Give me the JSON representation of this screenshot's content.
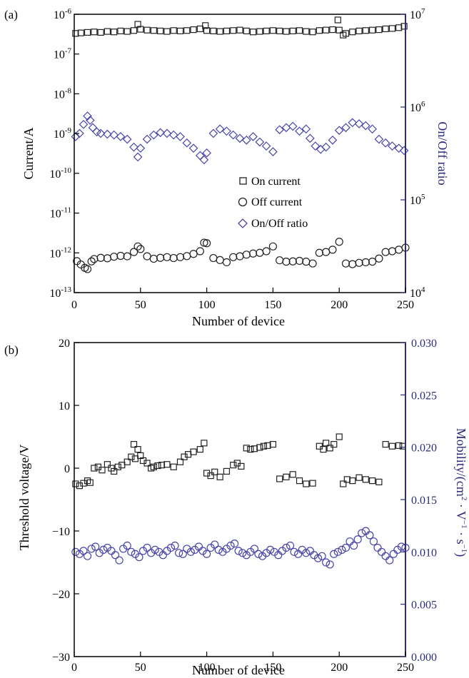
{
  "chart_data": [
    {
      "panel": "(a)",
      "type": "scatter",
      "xlabel": "Number of device",
      "ylabel": "Current/A",
      "y2label": "On/Off ratio",
      "xlim": [
        0,
        250
      ],
      "ylim_log10": [
        -13,
        -6
      ],
      "y2lim_log10": [
        4,
        7
      ],
      "y_scale": "log",
      "y2_scale": "log",
      "xticks": [
        "0",
        "50",
        "100",
        "150",
        "200",
        "250"
      ],
      "yticks": [
        {
          "base": "10",
          "exp": "-13"
        },
        {
          "base": "10",
          "exp": "-12"
        },
        {
          "base": "10",
          "exp": "-11"
        },
        {
          "base": "10",
          "exp": "-10"
        },
        {
          "base": "10",
          "exp": "-9"
        },
        {
          "base": "10",
          "exp": "-8"
        },
        {
          "base": "10",
          "exp": "-7"
        },
        {
          "base": "10",
          "exp": "-6"
        }
      ],
      "y2ticks": [
        {
          "base": "10",
          "exp": "4"
        },
        {
          "base": "10",
          "exp": "5"
        },
        {
          "base": "10",
          "exp": "6"
        },
        {
          "base": "10",
          "exp": "7"
        }
      ],
      "legend_position": "center-right",
      "colors": {
        "on_current": "#222222",
        "off_current": "#222222",
        "ratio": "#4a44a8"
      },
      "series": [
        {
          "name": "On current",
          "marker": "square",
          "axis": "left",
          "x": [
            1,
            5,
            10,
            15,
            20,
            25,
            30,
            35,
            40,
            45,
            48,
            50,
            55,
            60,
            65,
            70,
            75,
            80,
            85,
            90,
            95,
            99,
            100,
            105,
            110,
            115,
            120,
            125,
            130,
            135,
            140,
            145,
            150,
            155,
            160,
            165,
            170,
            175,
            180,
            185,
            190,
            195,
            199,
            200,
            203,
            205,
            210,
            215,
            220,
            225,
            230,
            235,
            240,
            245,
            249
          ],
          "y": [
            3.3e-07,
            3.4e-07,
            3.5e-07,
            3.6e-07,
            3.5e-07,
            3.7e-07,
            3.6e-07,
            3.8e-07,
            3.7e-07,
            3.9e-07,
            5.6e-07,
            4.2e-07,
            4e-07,
            3.9e-07,
            3.8e-07,
            3.7e-07,
            3.9e-07,
            3.8e-07,
            3.9e-07,
            4.1e-07,
            4.3e-07,
            5.2e-07,
            3.9e-07,
            3.8e-07,
            3.7e-07,
            3.8e-07,
            3.9e-07,
            4e-07,
            3.8e-07,
            3.6e-07,
            3.7e-07,
            3.8e-07,
            3.9e-07,
            3.8e-07,
            3.7e-07,
            3.8e-07,
            3.9e-07,
            3.7e-07,
            3.6e-07,
            3.9e-07,
            4e-07,
            4.1e-07,
            7.2e-07,
            4e-07,
            3e-07,
            3.3e-07,
            3.6e-07,
            3.8e-07,
            3.9e-07,
            4e-07,
            4.1e-07,
            4.3e-07,
            4.4e-07,
            4.6e-07,
            5e-07
          ]
        },
        {
          "name": "Off current",
          "marker": "circle",
          "axis": "left",
          "x": [
            2,
            5,
            8,
            10,
            13,
            15,
            20,
            25,
            30,
            35,
            40,
            45,
            48,
            50,
            55,
            60,
            65,
            70,
            75,
            80,
            85,
            90,
            95,
            98,
            100,
            105,
            110,
            115,
            120,
            125,
            130,
            135,
            140,
            145,
            150,
            155,
            160,
            165,
            170,
            175,
            180,
            185,
            190,
            195,
            200,
            205,
            210,
            215,
            220,
            225,
            230,
            235,
            240,
            245,
            250
          ],
          "y": [
            6.2e-13,
            5.1e-13,
            4.2e-13,
            3.9e-13,
            6.1e-13,
            7e-13,
            7.5e-13,
            7.3e-13,
            8e-13,
            8.4e-13,
            8.2e-13,
            1.05e-12,
            1.45e-12,
            1.25e-12,
            8.2e-13,
            7.1e-13,
            7.5e-13,
            7.8e-13,
            7.4e-13,
            7.8e-13,
            8.3e-13,
            9.4e-13,
            1.1e-12,
            1.8e-12,
            1.75e-12,
            7.4e-13,
            6.6e-13,
            5.8e-13,
            7.8e-13,
            8.2e-13,
            9e-13,
            9.6e-13,
            1e-12,
            1.1e-12,
            1.45e-12,
            6.5e-13,
            6e-13,
            6.1e-13,
            6.3e-13,
            6e-13,
            5.4e-13,
            1e-12,
            1.05e-12,
            1.2e-12,
            1.9e-12,
            5.4e-13,
            5.2e-13,
            5.6e-13,
            5.8e-13,
            6e-13,
            7.2e-13,
            1.05e-12,
            1.1e-12,
            1.2e-12,
            1.35e-12
          ]
        },
        {
          "name": "On/Off ratio",
          "marker": "diamond",
          "axis": "right",
          "x": [
            1,
            4,
            7,
            10,
            12,
            14,
            17,
            20,
            25,
            30,
            35,
            40,
            45,
            48,
            50,
            55,
            60,
            65,
            70,
            75,
            80,
            85,
            90,
            95,
            98,
            100,
            105,
            110,
            115,
            120,
            125,
            130,
            135,
            140,
            145,
            150,
            155,
            160,
            165,
            170,
            175,
            178,
            182,
            186,
            190,
            195,
            200,
            205,
            210,
            215,
            220,
            225,
            230,
            235,
            240,
            245,
            249
          ],
          "y": [
            480000.0,
            520000.0,
            650000.0,
            800000.0,
            720000.0,
            600000.0,
            540000.0,
            520000.0,
            510000.0,
            500000.0,
            480000.0,
            450000.0,
            370000.0,
            290000.0,
            360000.0,
            450000.0,
            500000.0,
            530000.0,
            520000.0,
            500000.0,
            480000.0,
            410000.0,
            360000.0,
            300000.0,
            270000.0,
            320000.0,
            520000.0,
            580000.0,
            550000.0,
            500000.0,
            460000.0,
            440000.0,
            480000.0,
            420000.0,
            380000.0,
            330000.0,
            570000.0,
            600000.0,
            620000.0,
            550000.0,
            580000.0,
            460000.0,
            380000.0,
            350000.0,
            370000.0,
            440000.0,
            560000.0,
            600000.0,
            680000.0,
            660000.0,
            630000.0,
            580000.0,
            450000.0,
            410000.0,
            380000.0,
            360000.0,
            340000.0
          ]
        }
      ]
    },
    {
      "panel": "(b)",
      "type": "scatter",
      "xlabel": "Number of device",
      "ylabel": "Threshold voltage/V",
      "y2label_parts": {
        "prefix": "Mobility/(cm",
        "sup1": "2",
        "mid1": " · V",
        "sup2": "−1",
        "mid2": " · s",
        "sup3": "−1",
        "suffix": ")"
      },
      "xlim": [
        0,
        250
      ],
      "ylim": [
        -30,
        20
      ],
      "y2lim": [
        0.0,
        0.03
      ],
      "xticks": [
        "0",
        "50",
        "100",
        "150",
        "200",
        "250"
      ],
      "yticks": [
        "−30",
        "−20",
        "−10",
        "0",
        "10",
        "20"
      ],
      "y2ticks": [
        "0.000",
        "0.005",
        "0.010",
        "0.015",
        "0.020",
        "0.025",
        "0.030"
      ],
      "colors": {
        "vth": "#222222",
        "mobility": "#4a44a8"
      },
      "series": [
        {
          "marker": "square",
          "axis": "left",
          "x": [
            1,
            4,
            7,
            10,
            12,
            15,
            18,
            21,
            25,
            28,
            30,
            33,
            36,
            40,
            43,
            45,
            46,
            48,
            50,
            52,
            55,
            58,
            60,
            63,
            66,
            70,
            75,
            80,
            83,
            86,
            90,
            95,
            98,
            100,
            103,
            106,
            110,
            115,
            120,
            123,
            126,
            130,
            133,
            136,
            140,
            143,
            146,
            150,
            155,
            160,
            165,
            170,
            175,
            180,
            185,
            188,
            190,
            193,
            196,
            200,
            203,
            206,
            210,
            215,
            220,
            225,
            230,
            235,
            240,
            245,
            248
          ],
          "y": [
            -2.5,
            -2.8,
            -2.4,
            -2.0,
            -2.3,
            0.0,
            0.2,
            -0.3,
            0.6,
            0.0,
            -0.5,
            0.2,
            0.5,
            1.0,
            1.8,
            3.8,
            1.5,
            3.0,
            2.0,
            1.2,
            0.8,
            0.0,
            0.2,
            0.4,
            0.5,
            0.6,
            0.2,
            1.0,
            1.8,
            2.2,
            2.6,
            3.0,
            4.0,
            -0.8,
            -1.2,
            -0.6,
            -1.4,
            -0.5,
            0.5,
            0.8,
            0.3,
            3.2,
            3.0,
            3.1,
            3.3,
            3.5,
            3.6,
            3.8,
            -1.7,
            -1.4,
            -1.0,
            -2.0,
            -2.5,
            -2.4,
            3.5,
            3.0,
            4.0,
            3.2,
            3.8,
            5.0,
            -2.5,
            -1.8,
            -2.0,
            -1.5,
            -1.8,
            -2.0,
            -2.2,
            3.8,
            3.5,
            3.6,
            3.5
          ]
        },
        {
          "marker": "circle",
          "axis": "right",
          "x": [
            1,
            4,
            7,
            10,
            13,
            16,
            19,
            22,
            25,
            28,
            31,
            34,
            37,
            40,
            43,
            46,
            49,
            52,
            55,
            58,
            61,
            64,
            67,
            70,
            73,
            76,
            79,
            82,
            85,
            88,
            91,
            94,
            97,
            100,
            103,
            106,
            109,
            112,
            115,
            118,
            121,
            124,
            127,
            130,
            133,
            136,
            139,
            142,
            145,
            148,
            151,
            154,
            157,
            160,
            163,
            166,
            169,
            172,
            175,
            178,
            181,
            184,
            187,
            190,
            193,
            196,
            199,
            202,
            205,
            208,
            211,
            214,
            217,
            220,
            223,
            226,
            229,
            232,
            235,
            238,
            241,
            244,
            247,
            250
          ],
          "y": [
            0.01,
            0.0098,
            0.0101,
            0.0096,
            0.0103,
            0.0105,
            0.0099,
            0.0102,
            0.0104,
            0.0101,
            0.0097,
            0.0092,
            0.0103,
            0.0106,
            0.01,
            0.0098,
            0.0095,
            0.0101,
            0.0104,
            0.0099,
            0.0102,
            0.01,
            0.0097,
            0.0101,
            0.0104,
            0.0106,
            0.0099,
            0.0098,
            0.0103,
            0.01,
            0.0102,
            0.0105,
            0.0101,
            0.0098,
            0.0104,
            0.0107,
            0.0102,
            0.01,
            0.0103,
            0.0106,
            0.0108,
            0.0101,
            0.0099,
            0.0097,
            0.01,
            0.0103,
            0.0098,
            0.0096,
            0.0099,
            0.0102,
            0.01,
            0.0097,
            0.0101,
            0.0104,
            0.0106,
            0.01,
            0.0098,
            0.0102,
            0.0099,
            0.0101,
            0.0097,
            0.0094,
            0.0096,
            0.009,
            0.0088,
            0.0098,
            0.01,
            0.0102,
            0.0104,
            0.011,
            0.0106,
            0.0112,
            0.0118,
            0.012,
            0.0116,
            0.011,
            0.0104,
            0.01,
            0.0096,
            0.0092,
            0.0098,
            0.0102,
            0.0105,
            0.0104
          ]
        }
      ]
    }
  ]
}
